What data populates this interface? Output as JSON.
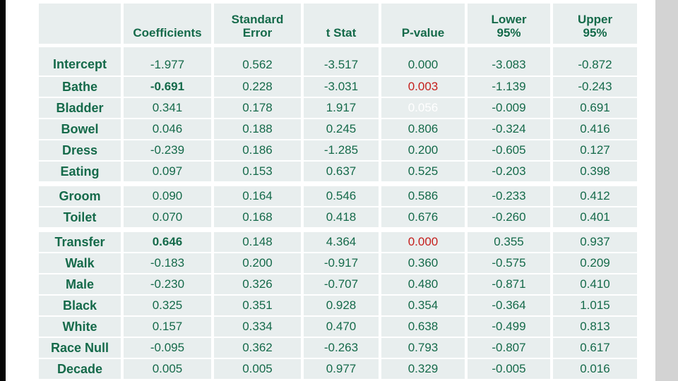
{
  "colors": {
    "text_green": "#156a4a",
    "alert_red": "#c5201d",
    "muted_white": "#ffffff",
    "cell_background": "#e8eeee",
    "left_bar": "#060606",
    "right_bar": "#d3d3d3"
  },
  "table": {
    "headers": [
      "",
      "Coefficients",
      "Standard\nError",
      "t Stat",
      "P-value",
      "Lower\n95%",
      "Upper\n95%"
    ],
    "rows": [
      {
        "label": "Intercept",
        "tall": true,
        "cells": [
          {
            "v": "-1.977"
          },
          {
            "v": "0.562"
          },
          {
            "v": "-3.517"
          },
          {
            "v": "0.000"
          },
          {
            "v": "-3.083"
          },
          {
            "v": "-0.872"
          }
        ]
      },
      {
        "label": "Bathe",
        "cells": [
          {
            "v": "-0.691",
            "style": "bold"
          },
          {
            "v": "0.228"
          },
          {
            "v": "-3.031"
          },
          {
            "v": "0.003",
            "style": "red"
          },
          {
            "v": "-1.139"
          },
          {
            "v": "-0.243"
          }
        ]
      },
      {
        "label": "Bladder",
        "cells": [
          {
            "v": "0.341"
          },
          {
            "v": "0.178"
          },
          {
            "v": "1.917"
          },
          {
            "v": "0.056",
            "style": "white"
          },
          {
            "v": "-0.009"
          },
          {
            "v": "0.691"
          }
        ]
      },
      {
        "label": "Bowel",
        "cells": [
          {
            "v": "0.046"
          },
          {
            "v": "0.188"
          },
          {
            "v": "0.245"
          },
          {
            "v": "0.806"
          },
          {
            "v": "-0.324"
          },
          {
            "v": "0.416"
          }
        ]
      },
      {
        "label": "Dress",
        "cells": [
          {
            "v": "-0.239"
          },
          {
            "v": "0.186"
          },
          {
            "v": "-1.285"
          },
          {
            "v": "0.200"
          },
          {
            "v": "-0.605"
          },
          {
            "v": "0.127"
          }
        ]
      },
      {
        "label": "Eating",
        "cells": [
          {
            "v": "0.097"
          },
          {
            "v": "0.153"
          },
          {
            "v": "0.637"
          },
          {
            "v": "0.525"
          },
          {
            "v": "-0.203"
          },
          {
            "v": "0.398"
          }
        ]
      },
      {
        "label": "Groom",
        "groupStart": true,
        "cells": [
          {
            "v": "0.090"
          },
          {
            "v": "0.164"
          },
          {
            "v": "0.546"
          },
          {
            "v": "0.586"
          },
          {
            "v": "-0.233"
          },
          {
            "v": "0.412"
          }
        ]
      },
      {
        "label": "Toilet",
        "cells": [
          {
            "v": "0.070"
          },
          {
            "v": "0.168"
          },
          {
            "v": "0.418"
          },
          {
            "v": "0.676"
          },
          {
            "v": "-0.260"
          },
          {
            "v": "0.401"
          }
        ]
      },
      {
        "label": "Transfer",
        "groupStart": true,
        "cells": [
          {
            "v": "0.646",
            "style": "bold"
          },
          {
            "v": "0.148"
          },
          {
            "v": "4.364"
          },
          {
            "v": "0.000",
            "style": "red"
          },
          {
            "v": "0.355"
          },
          {
            "v": "0.937"
          }
        ]
      },
      {
        "label": "Walk",
        "cells": [
          {
            "v": "-0.183"
          },
          {
            "v": "0.200"
          },
          {
            "v": "-0.917"
          },
          {
            "v": "0.360"
          },
          {
            "v": "-0.575"
          },
          {
            "v": "0.209"
          }
        ]
      },
      {
        "label": "Male",
        "cells": [
          {
            "v": "-0.230"
          },
          {
            "v": "0.326"
          },
          {
            "v": "-0.707"
          },
          {
            "v": "0.480"
          },
          {
            "v": "-0.871"
          },
          {
            "v": "0.410"
          }
        ]
      },
      {
        "label": "Black",
        "cells": [
          {
            "v": "0.325"
          },
          {
            "v": "0.351"
          },
          {
            "v": "0.928"
          },
          {
            "v": "0.354"
          },
          {
            "v": "-0.364"
          },
          {
            "v": "1.015"
          }
        ]
      },
      {
        "label": "White",
        "cells": [
          {
            "v": "0.157"
          },
          {
            "v": "0.334"
          },
          {
            "v": "0.470"
          },
          {
            "v": "0.638"
          },
          {
            "v": "-0.499"
          },
          {
            "v": "0.813"
          }
        ]
      },
      {
        "label": "Race Null",
        "cells": [
          {
            "v": "-0.095"
          },
          {
            "v": "0.362"
          },
          {
            "v": "-0.263"
          },
          {
            "v": "0.793"
          },
          {
            "v": "-0.807"
          },
          {
            "v": "0.617"
          }
        ]
      },
      {
        "label": "Decade",
        "cells": [
          {
            "v": "0.005"
          },
          {
            "v": "0.005"
          },
          {
            "v": "0.977"
          },
          {
            "v": "0.329"
          },
          {
            "v": "-0.005"
          },
          {
            "v": "0.016"
          }
        ]
      }
    ]
  }
}
